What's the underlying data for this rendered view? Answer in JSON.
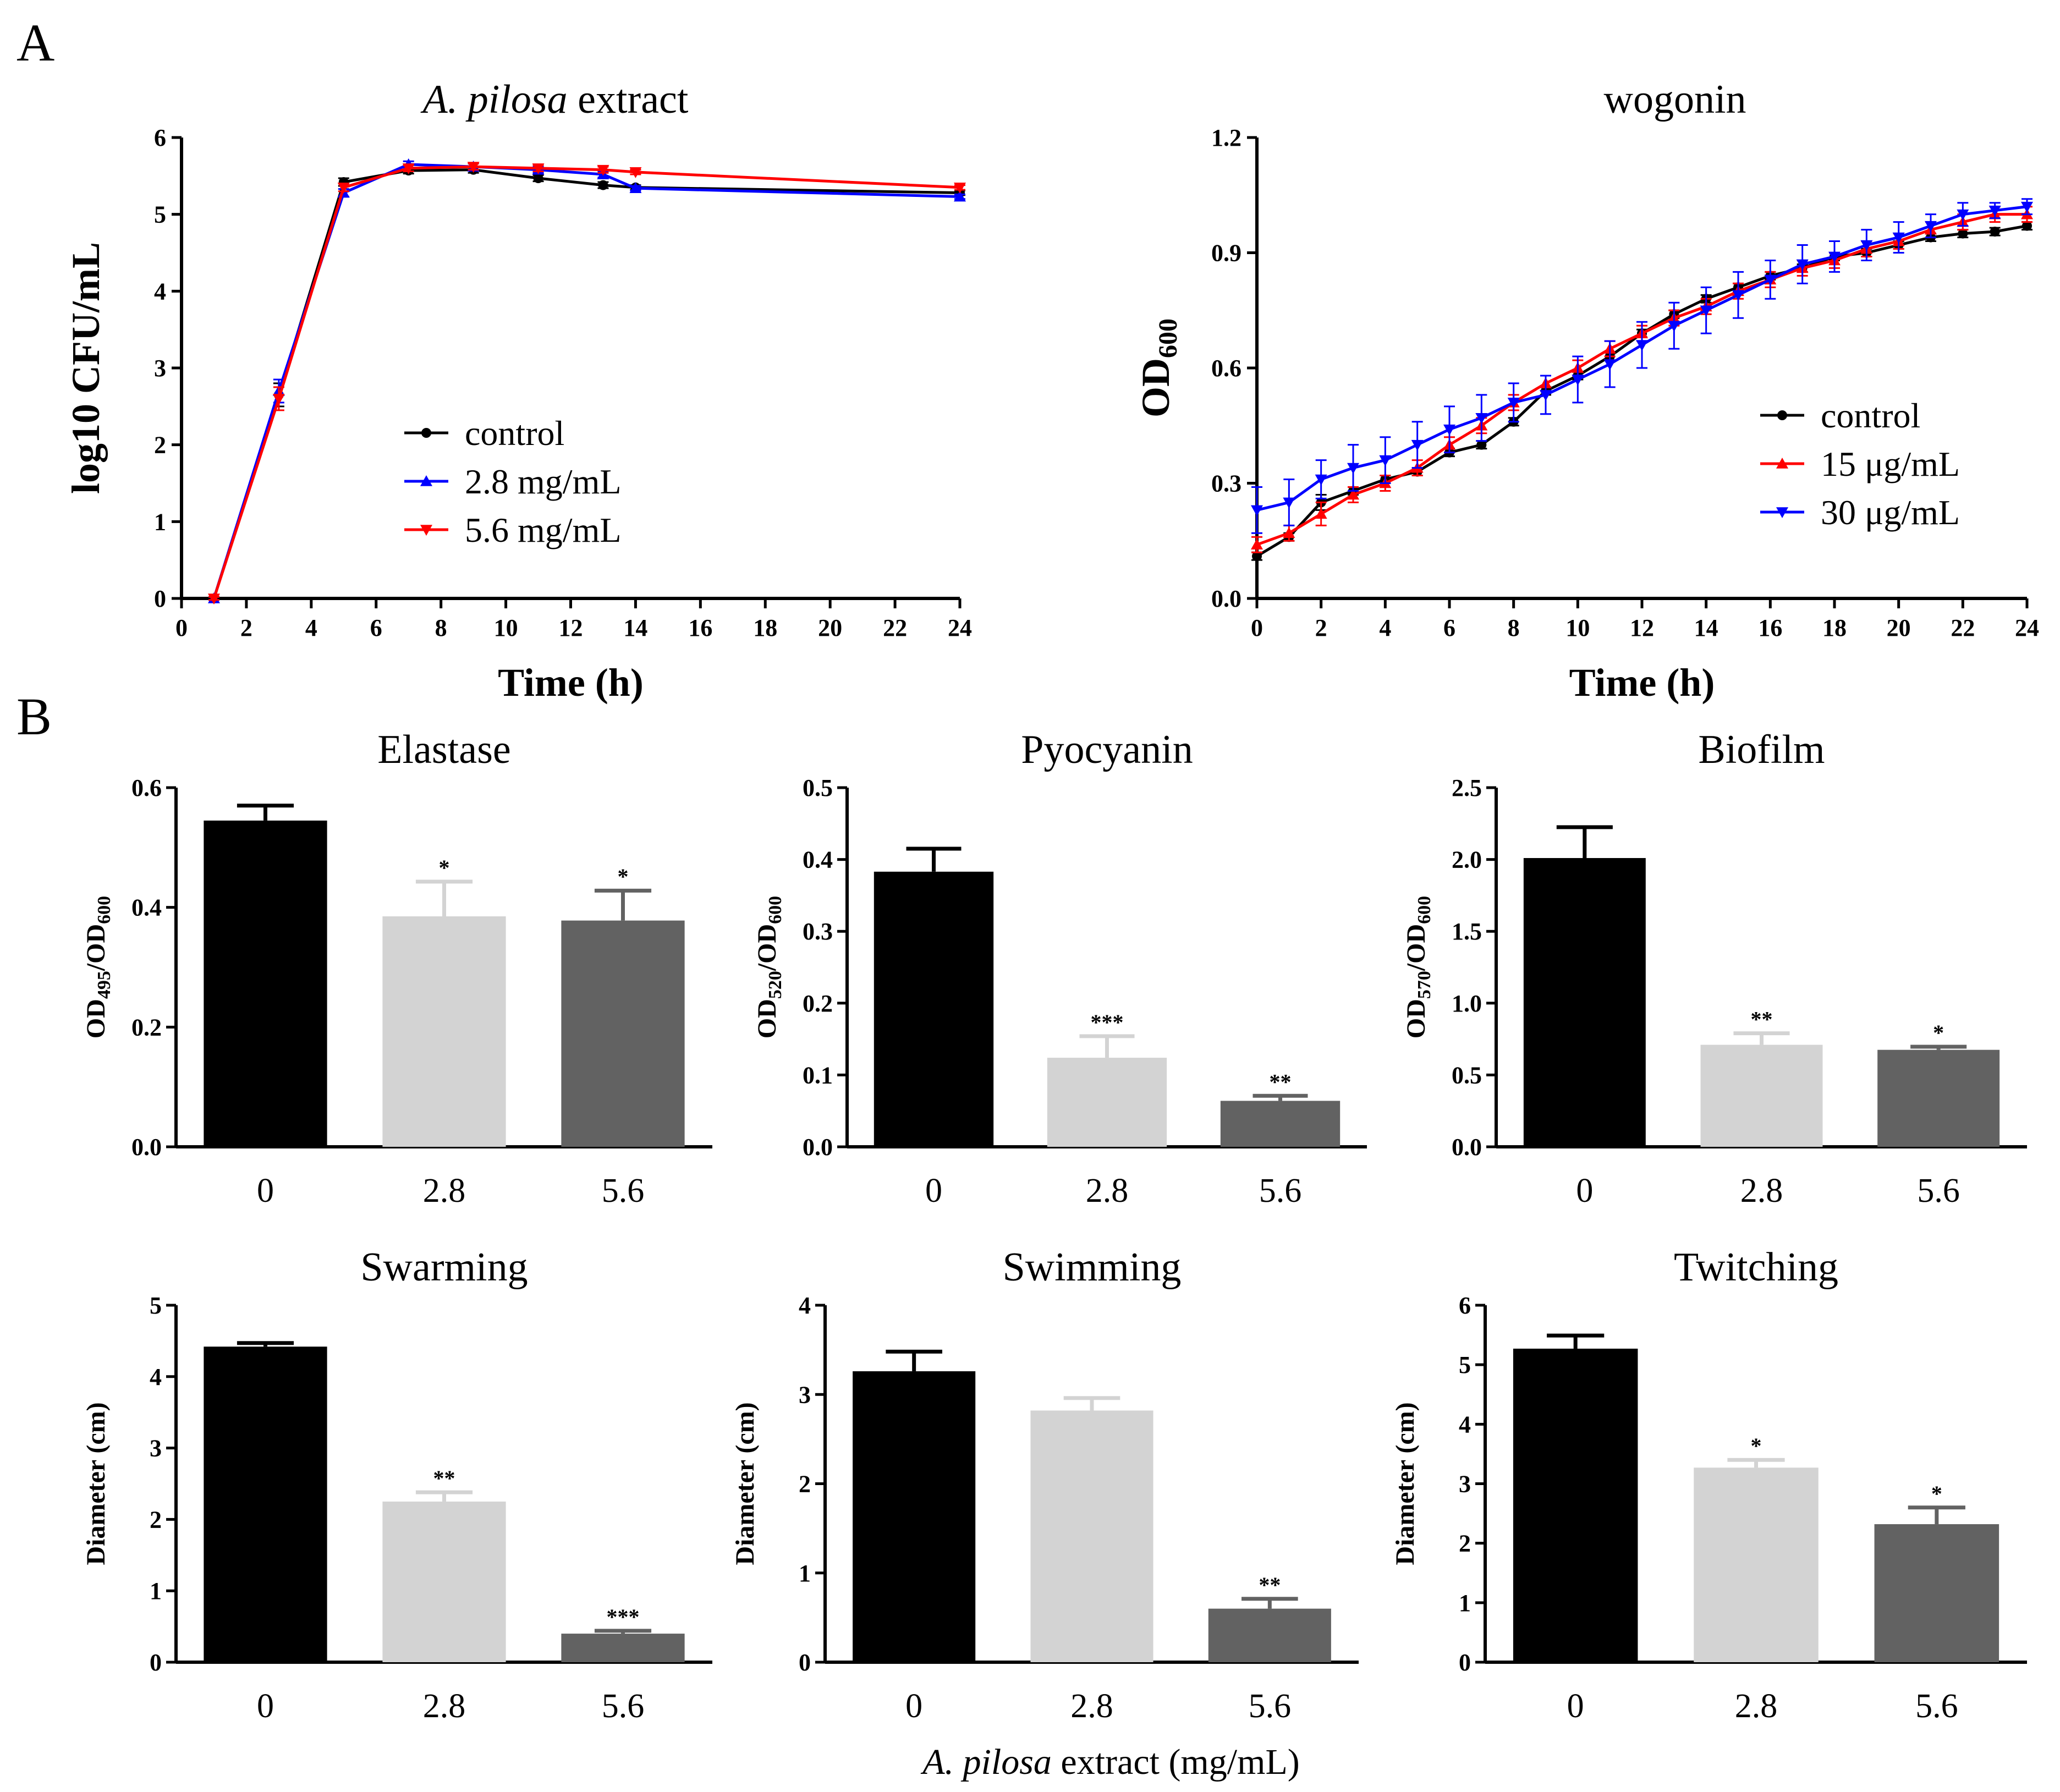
{
  "panel_labels": [
    "A",
    "B"
  ],
  "x_caption": {
    "italic": "A. pilosa",
    "rest": " extract (mg/mL)"
  },
  "chart_data": [
    {
      "type": "line",
      "title_italic": "A. pilosa",
      "title_rest": " extract",
      "xlabel": "Time (h)",
      "ylabel": "log10 CFU/mL",
      "xlim": [
        0,
        24
      ],
      "ylim": [
        0,
        6
      ],
      "xticks": [
        0,
        2,
        4,
        6,
        8,
        10,
        12,
        14,
        16,
        18,
        20,
        22,
        24
      ],
      "yticks": [
        0,
        1,
        2,
        3,
        4,
        5,
        6
      ],
      "legend_position": "center",
      "series": [
        {
          "name": "control",
          "color": "#000000",
          "marker": "circle",
          "x": [
            1,
            3,
            5,
            7,
            9,
            11,
            13,
            14,
            24
          ],
          "y": [
            0.0,
            2.65,
            5.42,
            5.57,
            5.58,
            5.47,
            5.38,
            5.35,
            5.28
          ],
          "err": [
            0.02,
            0.15,
            0.05,
            0.04,
            0.04,
            0.04,
            0.04,
            0.03,
            0.03
          ]
        },
        {
          "name": "2.8 mg/mL",
          "color": "#0000ff",
          "marker": "triangle-up",
          "x": [
            1,
            3,
            5,
            7,
            9,
            11,
            13,
            14,
            24
          ],
          "y": [
            0.0,
            2.7,
            5.28,
            5.65,
            5.62,
            5.58,
            5.52,
            5.34,
            5.23
          ],
          "err": [
            0.02,
            0.15,
            0.05,
            0.04,
            0.04,
            0.04,
            0.04,
            0.03,
            0.03
          ]
        },
        {
          "name": "5.6 mg/mL",
          "color": "#ff0000",
          "marker": "triangle-down",
          "x": [
            1,
            3,
            5,
            7,
            9,
            11,
            13,
            14,
            24
          ],
          "y": [
            0.0,
            2.6,
            5.35,
            5.6,
            5.62,
            5.6,
            5.58,
            5.55,
            5.35
          ],
          "err": [
            0.02,
            0.15,
            0.05,
            0.04,
            0.04,
            0.04,
            0.04,
            0.03,
            0.03
          ]
        }
      ]
    },
    {
      "type": "line",
      "title": "wogonin",
      "xlabel": "Time (h)",
      "ylabel": "OD",
      "ylabel_sub": "600",
      "xlim": [
        0,
        24
      ],
      "ylim": [
        0,
        1.2
      ],
      "xticks": [
        0,
        2,
        4,
        6,
        8,
        10,
        12,
        14,
        16,
        18,
        20,
        22,
        24
      ],
      "yticks": [
        "0.0",
        "0.3",
        "0.6",
        "0.9",
        "1.2"
      ],
      "legend_position": "bottom-right",
      "series": [
        {
          "name": "control",
          "color": "#000000",
          "marker": "circle",
          "x": [
            0,
            1,
            2,
            3,
            4,
            5,
            6,
            7,
            8,
            9,
            10,
            11,
            12,
            13,
            14,
            15,
            16,
            17,
            18,
            19,
            20,
            21,
            22,
            23,
            24
          ],
          "y": [
            0.11,
            0.16,
            0.25,
            0.28,
            0.31,
            0.33,
            0.38,
            0.4,
            0.46,
            0.54,
            0.58,
            0.63,
            0.69,
            0.74,
            0.78,
            0.81,
            0.84,
            0.86,
            0.89,
            0.9,
            0.92,
            0.94,
            0.95,
            0.955,
            0.97
          ],
          "err": [
            0.01,
            0.01,
            0.02,
            0.01,
            0.01,
            0.01,
            0.01,
            0.01,
            0.01,
            0.01,
            0.01,
            0.01,
            0.01,
            0.01,
            0.01,
            0.01,
            0.01,
            0.01,
            0.01,
            0.01,
            0.01,
            0.01,
            0.01,
            0.01,
            0.01
          ]
        },
        {
          "name": "15 μg/mL",
          "color": "#ff0000",
          "marker": "triangle-up",
          "x": [
            0,
            1,
            2,
            3,
            4,
            5,
            6,
            7,
            8,
            9,
            10,
            11,
            12,
            13,
            14,
            15,
            16,
            17,
            18,
            19,
            20,
            21,
            22,
            23,
            24
          ],
          "y": [
            0.14,
            0.17,
            0.22,
            0.27,
            0.3,
            0.34,
            0.4,
            0.45,
            0.51,
            0.56,
            0.6,
            0.65,
            0.69,
            0.73,
            0.76,
            0.8,
            0.83,
            0.86,
            0.88,
            0.91,
            0.93,
            0.96,
            0.98,
            1.0,
            1.0
          ],
          "err": [
            0.02,
            0.02,
            0.03,
            0.02,
            0.02,
            0.02,
            0.02,
            0.02,
            0.02,
            0.02,
            0.02,
            0.02,
            0.02,
            0.02,
            0.02,
            0.02,
            0.02,
            0.02,
            0.02,
            0.02,
            0.02,
            0.02,
            0.02,
            0.02,
            0.02
          ]
        },
        {
          "name": "30 μg/mL",
          "color": "#0000ff",
          "marker": "triangle-down",
          "x": [
            0,
            1,
            2,
            3,
            4,
            5,
            6,
            7,
            8,
            9,
            10,
            11,
            12,
            13,
            14,
            15,
            16,
            17,
            18,
            19,
            20,
            21,
            22,
            23,
            24
          ],
          "y": [
            0.23,
            0.25,
            0.31,
            0.34,
            0.36,
            0.4,
            0.44,
            0.47,
            0.51,
            0.53,
            0.57,
            0.61,
            0.66,
            0.71,
            0.75,
            0.79,
            0.83,
            0.87,
            0.89,
            0.92,
            0.94,
            0.97,
            1.0,
            1.01,
            1.02
          ],
          "err": [
            0.06,
            0.06,
            0.05,
            0.06,
            0.06,
            0.06,
            0.06,
            0.06,
            0.05,
            0.05,
            0.06,
            0.06,
            0.06,
            0.06,
            0.06,
            0.06,
            0.05,
            0.05,
            0.04,
            0.04,
            0.04,
            0.03,
            0.03,
            0.02,
            0.02
          ]
        }
      ]
    },
    {
      "type": "bar",
      "title": "Elastase",
      "ylabel": "OD",
      "ylabel_sub1": "495",
      "ylabel_mid": "/OD",
      "ylabel_sub2": "600",
      "ylim": [
        0,
        0.6
      ],
      "yticks": [
        "0.0",
        "0.2",
        "0.4",
        "0.6"
      ],
      "categories": [
        "0",
        "2.8",
        "5.6"
      ],
      "values": [
        0.545,
        0.385,
        0.378
      ],
      "errors": [
        0.025,
        0.058,
        0.05
      ],
      "stars": [
        "",
        "*",
        "*"
      ],
      "colors": [
        "#000000",
        "#d3d3d3",
        "#626262"
      ]
    },
    {
      "type": "bar",
      "title": "Pyocyanin",
      "ylabel": "OD",
      "ylabel_sub1": "520",
      "ylabel_mid": "/OD",
      "ylabel_sub2": "600",
      "ylim": [
        0,
        0.5
      ],
      "yticks": [
        "0.0",
        "0.1",
        "0.2",
        "0.3",
        "0.4",
        "0.5"
      ],
      "categories": [
        "0",
        "2.8",
        "5.6"
      ],
      "values": [
        0.383,
        0.124,
        0.064
      ],
      "errors": [
        0.032,
        0.03,
        0.007
      ],
      "stars": [
        "",
        "***",
        "**"
      ],
      "colors": [
        "#000000",
        "#d3d3d3",
        "#626262"
      ]
    },
    {
      "type": "bar",
      "title": "Biofilm",
      "ylabel": "OD",
      "ylabel_sub1": "570",
      "ylabel_mid": "/OD",
      "ylabel_sub2": "600",
      "ylim": [
        0,
        2.5
      ],
      "yticks": [
        "0.0",
        "0.5",
        "1.0",
        "1.5",
        "2.0",
        "2.5"
      ],
      "categories": [
        "0",
        "2.8",
        "5.6"
      ],
      "values": [
        2.01,
        0.71,
        0.675
      ],
      "errors": [
        0.215,
        0.08,
        0.022
      ],
      "stars": [
        "",
        "**",
        "*"
      ],
      "colors": [
        "#000000",
        "#d3d3d3",
        "#626262"
      ]
    },
    {
      "type": "bar",
      "title": "Swarming",
      "ylabel": "Diameter (cm)",
      "ylim": [
        0,
        5
      ],
      "yticks": [
        "0",
        "1",
        "2",
        "3",
        "4",
        "5"
      ],
      "categories": [
        "0",
        "2.8",
        "5.6"
      ],
      "values": [
        4.42,
        2.25,
        0.4
      ],
      "errors": [
        0.05,
        0.13,
        0.04
      ],
      "stars": [
        "",
        "**",
        "***"
      ],
      "colors": [
        "#000000",
        "#d3d3d3",
        "#626262"
      ]
    },
    {
      "type": "bar",
      "title": "Swimming",
      "ylabel": "Diameter (cm)",
      "ylim": [
        0,
        4
      ],
      "yticks": [
        "0",
        "1",
        "2",
        "3",
        "4"
      ],
      "categories": [
        "0",
        "2.8",
        "5.6"
      ],
      "values": [
        3.26,
        2.82,
        0.6
      ],
      "errors": [
        0.22,
        0.14,
        0.11
      ],
      "stars": [
        "",
        "",
        "**"
      ],
      "colors": [
        "#000000",
        "#d3d3d3",
        "#626262"
      ]
    },
    {
      "type": "bar",
      "title": "Twitching",
      "ylabel": "Diameter (cm)",
      "ylim": [
        0,
        6
      ],
      "yticks": [
        "0",
        "1",
        "2",
        "3",
        "4",
        "5",
        "6"
      ],
      "categories": [
        "0",
        "2.8",
        "5.6"
      ],
      "values": [
        5.27,
        3.27,
        2.32
      ],
      "errors": [
        0.22,
        0.13,
        0.28
      ],
      "stars": [
        "",
        "*",
        "*"
      ],
      "colors": [
        "#000000",
        "#d3d3d3",
        "#626262"
      ]
    }
  ]
}
